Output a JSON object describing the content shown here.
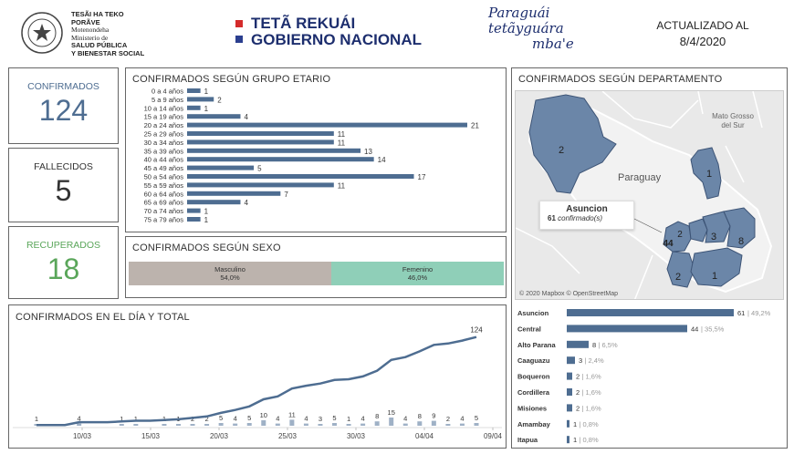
{
  "header": {
    "ministry_line1": "TESÃI HA TEKO",
    "ministry_line2": "PORÃVE",
    "ministry_line3": "Motenondeha",
    "ministry_line4": "Ministerio de",
    "ministry_line5": "SALUD PÚBLICA",
    "ministry_line6": "Y BIENESTAR SOCIAL",
    "gov_line1": "TETÃ REKUÁI",
    "gov_line2": "GOBIERNO NACIONAL",
    "slogan_line1": "Paraguái",
    "slogan_line2": "tetãyguára",
    "slogan_line3": "mba'e",
    "updated_label": "ACTUALIZADO AL",
    "updated_date": "8/4/2020"
  },
  "kpis": {
    "confirmados_label": "CONFIRMADOS",
    "confirmados_value": "124",
    "fallecidos_label": "FALLECIDOS",
    "fallecidos_value": "5",
    "recuperados_label": "RECUPERADOS",
    "recuperados_value": "18"
  },
  "colors": {
    "bar": "#4e6d91",
    "confirmados": "#4e6d91",
    "recuperados": "#5aa65a",
    "masculino": "#bcb3ad",
    "femenino": "#8fcfb8",
    "map_region": "#6b86a8"
  },
  "age_panel": {
    "title": "CONFIRMADOS SEGÚN GRUPO ETARIO"
  },
  "chart_data": [
    {
      "type": "bar",
      "orientation": "horizontal",
      "title": "CONFIRMADOS SEGÚN GRUPO ETARIO",
      "categories": [
        "0 a 4 años",
        "5 a 9 años",
        "10 a 14 años",
        "15 a 19 años",
        "20 a 24 años",
        "25 a 29 años",
        "30 a 34 años",
        "35 a 39 años",
        "40 a 44 años",
        "45 a 49 años",
        "50 a 54 años",
        "55 a 59 años",
        "60 a 64 años",
        "65 a 69 años",
        "70 a 74 años",
        "75 a 79 años"
      ],
      "values": [
        1,
        2,
        1,
        4,
        21,
        11,
        11,
        13,
        14,
        5,
        17,
        11,
        7,
        4,
        1,
        1
      ],
      "xlim": [
        0,
        21
      ]
    },
    {
      "type": "bar",
      "orientation": "stacked-horizontal",
      "title": "CONFIRMADOS SEGÚN SEXO",
      "categories": [
        "Masculino",
        "Femenino"
      ],
      "values": [
        54.0,
        46.0
      ],
      "labels": [
        "54,0%",
        "46,0%"
      ]
    },
    {
      "type": "line",
      "title": "CONFIRMADOS EN EL DÍA Y TOTAL",
      "x_ticks": [
        "10/03",
        "15/03",
        "20/03",
        "25/03",
        "30/03",
        "04/04",
        "09/04"
      ],
      "series": [
        {
          "values": [
            1,
            1,
            1,
            5,
            5,
            5,
            6,
            7,
            7,
            8,
            9,
            11,
            13,
            18,
            22,
            27,
            37,
            41,
            52,
            56,
            59,
            64,
            65,
            69,
            77,
            92,
            96,
            104,
            113,
            115,
            119,
            124
          ]
        },
        {
          "values": [
            1,
            0,
            0,
            4,
            0,
            0,
            1,
            1,
            0,
            1,
            1,
            2,
            2,
            5,
            4,
            5,
            10,
            4,
            11,
            4,
            3,
            5,
            1,
            4,
            8,
            15,
            4,
            8,
            9,
            2,
            4,
            5
          ]
        }
      ],
      "end_label": "124",
      "ylim": [
        0,
        130
      ]
    },
    {
      "type": "bar",
      "orientation": "horizontal",
      "title": "",
      "categories": [
        "Asuncion",
        "Central",
        "Alto Parana",
        "Caaguazu",
        "Boqueron",
        "Cordillera",
        "Misiones",
        "Amambay",
        "Itapua"
      ],
      "values": [
        61,
        44,
        8,
        3,
        2,
        2,
        2,
        1,
        1
      ],
      "percent_labels": [
        "49,2%",
        "35,5%",
        "6,5%",
        "2,4%",
        "1,6%",
        "1,6%",
        "1,6%",
        "0,8%",
        "0,8%"
      ],
      "xlim": [
        0,
        61
      ]
    }
  ],
  "sex_panel": {
    "title": "CONFIRMADOS SEGÚN SEXO",
    "masc_label": "Masculino",
    "masc_pct": "54,0%",
    "fem_label": "Femenino",
    "fem_pct": "46,0%"
  },
  "daily_panel": {
    "title": "CONFIRMADOS EN EL DÍA Y TOTAL"
  },
  "dept_panel": {
    "title": "CONFIRMADOS SEGÚN DEPARTAMENTO",
    "map": {
      "country_label": "Paraguay",
      "neighbor_label_1": "Mato Grosso",
      "neighbor_label_2": "del Sur",
      "tooltip_title": "Asuncion",
      "tooltip_value": "61",
      "tooltip_unit": "confirmado(s)",
      "attribution": "© 2020 Mapbox © OpenStreetMap",
      "region_labels": [
        "2",
        "1",
        "44",
        "2",
        "3",
        "8",
        "2",
        "1"
      ]
    }
  }
}
